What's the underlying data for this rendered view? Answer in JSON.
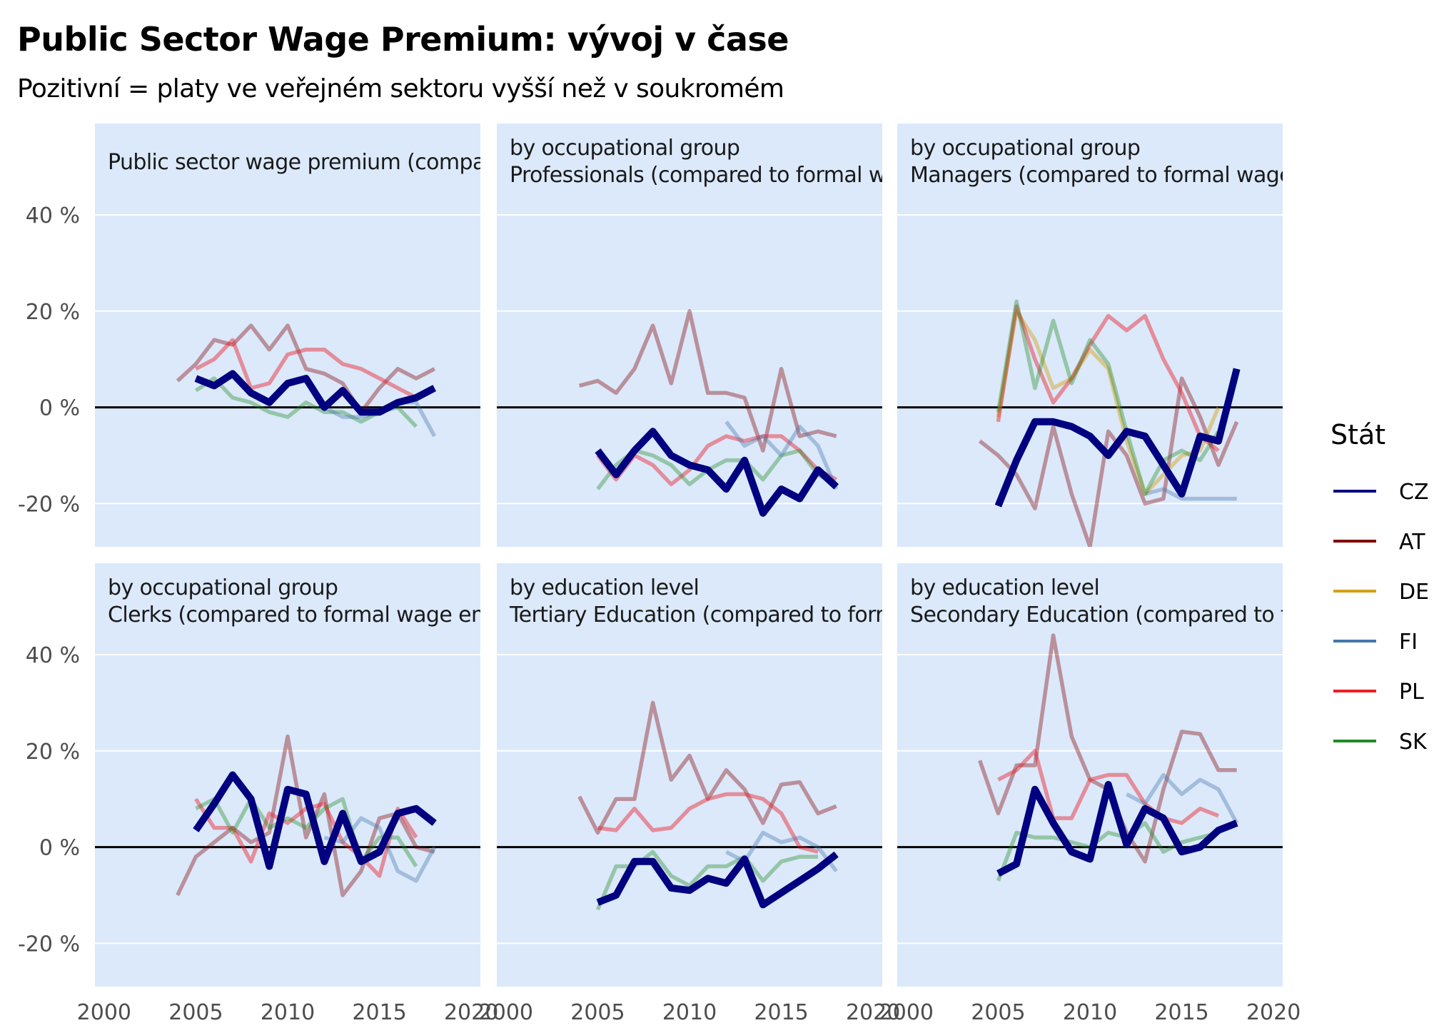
{
  "title": "Public Sector Wage Premium: vývoj v čase",
  "subtitle": "Pozitivní = platy ve veřejném sektoru vyšší než v soukromém",
  "legend_title": "Stát",
  "colors": {
    "CZ": "#000080",
    "AT": "#800000",
    "DE": "#d4a017",
    "FI": "#4477aa",
    "PL": "#ee1c25",
    "SK": "#228b22",
    "panel_bg": "#dbe9fb"
  },
  "chart_data": {
    "type": "line",
    "x_ticks": [
      2000,
      2005,
      2010,
      2015,
      2020
    ],
    "x_tick_labels": [
      "2000",
      "2005",
      "2010",
      "2015",
      "2020"
    ],
    "y_ticks": [
      -20,
      0,
      20,
      40
    ],
    "y_tick_labels": [
      "-20 %",
      "0 %",
      "20 %",
      "40 %"
    ],
    "xlim": [
      1999.5,
      2020.5
    ],
    "ylim": [
      -29,
      59
    ],
    "legend": [
      "CZ",
      "AT",
      "DE",
      "FI",
      "PL",
      "SK"
    ],
    "panels": [
      {
        "label": "Public sector wage premium (compa",
        "series": [
          {
            "name": "AT",
            "x": [
              2004,
              2005,
              2006,
              2007,
              2008,
              2009,
              2010,
              2011,
              2012,
              2013,
              2014,
              2015,
              2016,
              2017,
              2018
            ],
            "y": [
              5.5,
              9,
              14,
              13,
              17,
              12,
              17,
              8,
              7,
              5,
              -1,
              4,
              8,
              6,
              8
            ]
          },
          {
            "name": "PL",
            "x": [
              2005,
              2006,
              2007,
              2008,
              2009,
              2010,
              2011,
              2012,
              2013,
              2014,
              2015,
              2016,
              2017
            ],
            "y": [
              8,
              10,
              14,
              4,
              5,
              11,
              12,
              12,
              9,
              8,
              6,
              4,
              2
            ]
          },
          {
            "name": "SK",
            "x": [
              2005,
              2006,
              2007,
              2008,
              2009,
              2010,
              2011,
              2012,
              2013,
              2014,
              2015,
              2016,
              2017
            ],
            "y": [
              3.5,
              6,
              2,
              1,
              -1,
              -2,
              1,
              -1,
              -1,
              -3,
              -1,
              0,
              -4
            ]
          },
          {
            "name": "FI",
            "x": [
              2012,
              2013,
              2014,
              2015,
              2016,
              2017,
              2018
            ],
            "y": [
              0,
              -2,
              -2,
              -1,
              1,
              1,
              -6
            ]
          },
          {
            "name": "CZ",
            "x": [
              2005,
              2006,
              2007,
              2008,
              2009,
              2010,
              2011,
              2012,
              2013,
              2014,
              2015,
              2016,
              2017,
              2018
            ],
            "y": [
              6,
              4.5,
              7,
              3,
              1,
              5,
              6,
              0,
              3.5,
              -1,
              -1,
              1,
              2,
              4
            ]
          }
        ]
      },
      {
        "label": "by occupational group\nProfessionals (compared to formal w",
        "series": [
          {
            "name": "AT",
            "x": [
              2004,
              2005,
              2006,
              2007,
              2008,
              2009,
              2010,
              2011,
              2012,
              2013,
              2014,
              2015,
              2016,
              2017,
              2018
            ],
            "y": [
              4.5,
              5.5,
              3,
              8,
              17,
              5,
              20,
              3,
              3,
              2,
              -9,
              8,
              -6,
              -5,
              -6
            ]
          },
          {
            "name": "PL",
            "x": [
              2005,
              2006,
              2007,
              2008,
              2009,
              2010,
              2011,
              2012,
              2013,
              2014,
              2015,
              2016,
              2017,
              2018
            ],
            "y": [
              -10,
              -15,
              -10,
              -12,
              -16,
              -13,
              -8,
              -6,
              -7,
              -6,
              -6,
              -9,
              -13,
              -15
            ]
          },
          {
            "name": "SK",
            "x": [
              2005,
              2006,
              2007,
              2008,
              2009,
              2010,
              2011,
              2012,
              2013,
              2014,
              2015,
              2016,
              2017,
              2018
            ],
            "y": [
              -17,
              -12,
              -9,
              -10,
              -12,
              -16,
              -13,
              -11,
              -11,
              -15,
              -10,
              -9,
              -14,
              -16
            ]
          },
          {
            "name": "FI",
            "x": [
              2012,
              2013,
              2014,
              2015,
              2016,
              2017,
              2018
            ],
            "y": [
              -3,
              -8,
              -6,
              -10,
              -4,
              -8,
              -17
            ]
          },
          {
            "name": "CZ",
            "x": [
              2005,
              2006,
              2007,
              2008,
              2009,
              2010,
              2011,
              2012,
              2013,
              2014,
              2015,
              2016,
              2017,
              2018
            ],
            "y": [
              -9,
              -14,
              -9,
              -5,
              -10,
              -12,
              -13,
              -17,
              -11,
              -22,
              -17,
              -19,
              -13,
              -16.5
            ]
          }
        ]
      },
      {
        "label": "by occupational group\nManagers (compared to formal wage",
        "series": [
          {
            "name": "AT",
            "x": [
              2004,
              2005,
              2006,
              2007,
              2008,
              2009,
              2010,
              2011,
              2012,
              2013,
              2014,
              2015,
              2016,
              2017,
              2018
            ],
            "y": [
              -7,
              -10,
              -14,
              -21,
              -4,
              -18,
              -29,
              -5,
              -10,
              -20,
              -19,
              6,
              -2,
              -12,
              -3
            ]
          },
          {
            "name": "DE",
            "x": [
              2005,
              2006,
              2007,
              2008,
              2009,
              2010,
              2011,
              2012,
              2013,
              2014,
              2015,
              2016,
              2017
            ],
            "y": [
              -2,
              20,
              14,
              4,
              6,
              12,
              8,
              -7,
              -18,
              -14,
              -10,
              -9,
              0
            ]
          },
          {
            "name": "PL",
            "x": [
              2005,
              2006,
              2007,
              2008,
              2009,
              2010,
              2011,
              2012,
              2013,
              2014,
              2015,
              2016,
              2017
            ],
            "y": [
              -3,
              21,
              10,
              1,
              6,
              13,
              19,
              16,
              19,
              10,
              3,
              -6,
              -9
            ]
          },
          {
            "name": "SK",
            "x": [
              2005,
              2006,
              2007,
              2008,
              2009,
              2010,
              2011,
              2012,
              2013,
              2014,
              2015,
              2016,
              2017
            ],
            "y": [
              -1,
              22,
              4,
              18,
              5,
              14,
              9,
              -5,
              -18,
              -11,
              -9,
              -11,
              -5
            ]
          },
          {
            "name": "FI",
            "x": [
              2013,
              2014,
              2015,
              2016,
              2017,
              2018
            ],
            "y": [
              -18,
              -17,
              -19,
              -19,
              -19,
              -19
            ]
          },
          {
            "name": "CZ",
            "x": [
              2005,
              2006,
              2007,
              2008,
              2009,
              2010,
              2011,
              2012,
              2013,
              2014,
              2015,
              2016,
              2017,
              2018
            ],
            "y": [
              -20.5,
              -11,
              -3,
              -3,
              -4,
              -6,
              -10,
              -5,
              -6,
              -12,
              -18,
              -6,
              -7,
              8
            ]
          }
        ]
      },
      {
        "label": "by occupational group\nClerks (compared to formal wage em",
        "series": [
          {
            "name": "AT",
            "x": [
              2004,
              2005,
              2006,
              2007,
              2008,
              2009,
              2010,
              2011,
              2012,
              2013,
              2014,
              2015,
              2016,
              2017,
              2018
            ],
            "y": [
              -10,
              -2,
              1,
              4,
              1,
              3,
              23,
              2,
              11,
              -10,
              -5,
              6,
              7,
              0,
              -1
            ]
          },
          {
            "name": "PL",
            "x": [
              2005,
              2006,
              2007,
              2008,
              2009,
              2010,
              2011,
              2012,
              2013,
              2014,
              2015,
              2016,
              2017
            ],
            "y": [
              10,
              4,
              4,
              -3,
              7,
              5,
              8,
              9,
              1,
              -2,
              -6,
              8,
              2
            ]
          },
          {
            "name": "SK",
            "x": [
              2005,
              2006,
              2007,
              2008,
              2009,
              2010,
              2011,
              2012,
              2013,
              2014,
              2015,
              2016,
              2017
            ],
            "y": [
              8,
              10,
              3,
              10,
              4,
              6,
              4,
              8,
              10,
              -3,
              2,
              2,
              -4
            ]
          },
          {
            "name": "FI",
            "x": [
              2012,
              2013,
              2014,
              2015,
              2016,
              2017,
              2018
            ],
            "y": [
              2,
              1,
              6,
              4,
              -5,
              -7,
              0
            ]
          },
          {
            "name": "CZ",
            "x": [
              2005,
              2006,
              2007,
              2008,
              2009,
              2010,
              2011,
              2012,
              2013,
              2014,
              2015,
              2016,
              2017,
              2018
            ],
            "y": [
              3.5,
              9,
              15,
              10,
              -4,
              12,
              11,
              -3,
              7,
              -3,
              -1,
              7,
              8,
              5
            ]
          }
        ]
      },
      {
        "label": "by education level\nTertiary Education (compared to forr",
        "series": [
          {
            "name": "AT",
            "x": [
              2004,
              2005,
              2006,
              2007,
              2008,
              2009,
              2010,
              2011,
              2012,
              2013,
              2014,
              2015,
              2016,
              2017,
              2018
            ],
            "y": [
              10.5,
              3,
              10,
              10,
              30,
              14,
              19,
              10,
              16,
              12,
              5,
              13,
              13.5,
              7,
              8.5
            ]
          },
          {
            "name": "PL",
            "x": [
              2005,
              2006,
              2007,
              2008,
              2009,
              2010,
              2011,
              2012,
              2013,
              2014,
              2015,
              2016,
              2017
            ],
            "y": [
              4,
              3.5,
              8,
              3.5,
              4,
              8,
              10,
              11,
              11,
              10,
              7,
              0,
              -1
            ]
          },
          {
            "name": "SK",
            "x": [
              2005,
              2006,
              2007,
              2008,
              2009,
              2010,
              2011,
              2012,
              2013,
              2014,
              2015,
              2016,
              2017
            ],
            "y": [
              -13,
              -4,
              -4,
              -1,
              -6,
              -8,
              -4,
              -4,
              -2,
              -7,
              -3,
              -2,
              -2
            ]
          },
          {
            "name": "FI",
            "x": [
              2012,
              2013,
              2014,
              2015,
              2016,
              2017,
              2018
            ],
            "y": [
              -1,
              -3,
              3,
              1,
              2,
              0,
              -5
            ]
          },
          {
            "name": "CZ",
            "x": [
              2005,
              2006,
              2007,
              2008,
              2009,
              2010,
              2011,
              2012,
              2013,
              2014,
              2015,
              2016,
              2017,
              2018
            ],
            "y": [
              -11.5,
              -10,
              -3,
              -3,
              -8.5,
              -9,
              -6.5,
              -7.5,
              -2.5,
              -12,
              -9.5,
              -7,
              -4.5,
              -1.5
            ]
          }
        ]
      },
      {
        "label": "by education level\nSecondary Education (compared to f",
        "series": [
          {
            "name": "AT",
            "x": [
              2004,
              2005,
              2006,
              2007,
              2008,
              2009,
              2010,
              2011,
              2012,
              2013,
              2014,
              2015,
              2016,
              2017,
              2018
            ],
            "y": [
              18,
              7,
              17,
              17,
              44,
              23,
              14,
              12,
              3,
              -3,
              12,
              24,
              23.5,
              16,
              16
            ]
          },
          {
            "name": "PL",
            "x": [
              2005,
              2006,
              2007,
              2008,
              2009,
              2010,
              2011,
              2012,
              2013,
              2014,
              2015,
              2016,
              2017
            ],
            "y": [
              14,
              16,
              20,
              6,
              6,
              14,
              15,
              15,
              9,
              6,
              5,
              8,
              6.5
            ]
          },
          {
            "name": "SK",
            "x": [
              2005,
              2006,
              2007,
              2008,
              2009,
              2010,
              2011,
              2012,
              2013,
              2014,
              2015,
              2016,
              2017
            ],
            "y": [
              -7,
              3,
              2,
              2,
              1,
              0,
              3,
              2,
              5,
              -1,
              1,
              2,
              3
            ]
          },
          {
            "name": "FI",
            "x": [
              2012,
              2013,
              2014,
              2015,
              2016,
              2017,
              2018
            ],
            "y": [
              11,
              9,
              15,
              11,
              14,
              12,
              5
            ]
          },
          {
            "name": "CZ",
            "x": [
              2005,
              2006,
              2007,
              2008,
              2009,
              2010,
              2011,
              2012,
              2013,
              2014,
              2015,
              2016,
              2017,
              2018
            ],
            "y": [
              -5.5,
              -3.5,
              12,
              5,
              -1,
              -2.5,
              13,
              0.5,
              8,
              6,
              -1,
              0,
              3.5,
              5
            ]
          }
        ]
      }
    ]
  }
}
